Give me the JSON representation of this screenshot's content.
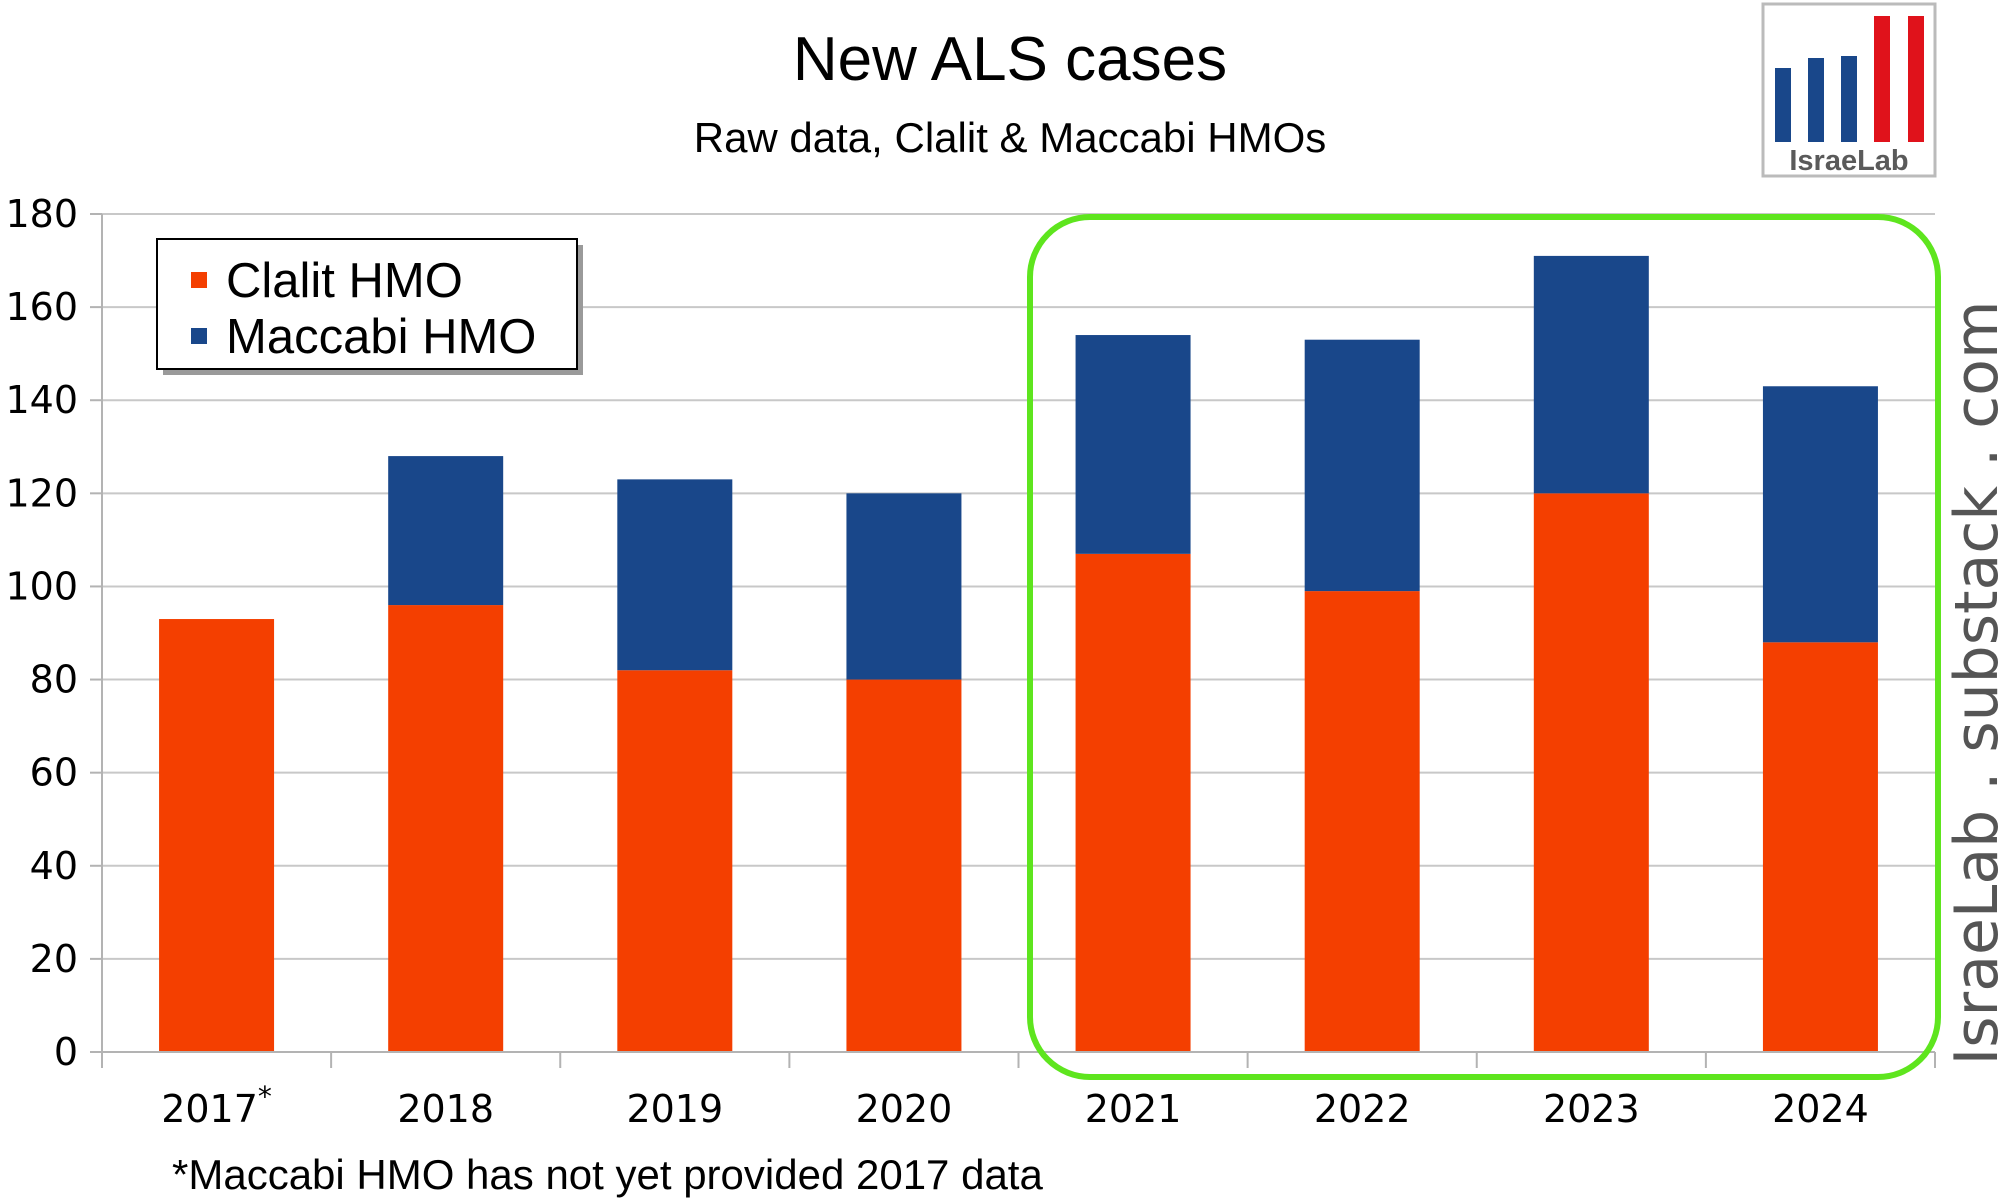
{
  "chart_data": {
    "type": "bar",
    "stacked": true,
    "title": "New ALS cases",
    "subtitle": "Raw data, Clalit & Maccabi HMOs",
    "xlabel": "",
    "ylabel": "",
    "categories": [
      "2017*",
      "2018",
      "2019",
      "2020",
      "2021",
      "2022",
      "2023",
      "2024"
    ],
    "series": [
      {
        "name": "Clalit HMO",
        "color": "#f43f00",
        "values": [
          93,
          96,
          82,
          80,
          107,
          99,
          120,
          88
        ]
      },
      {
        "name": "Maccabi HMO",
        "color": "#19478a",
        "values": [
          0,
          32,
          41,
          40,
          47,
          54,
          51,
          55
        ]
      }
    ],
    "ylim": [
      0,
      180
    ],
    "yticks": [
      0,
      20,
      40,
      60,
      80,
      100,
      120,
      140,
      160,
      180
    ],
    "grid": true,
    "legend_position": "top-left",
    "highlight": {
      "color": "#5ee51e",
      "categories": [
        "2021",
        "2022",
        "2023",
        "2024"
      ]
    },
    "footnote": "*Maccabi HMO has not yet provided 2017 data"
  },
  "logo": {
    "text": "IsraeLab",
    "bar_colors": [
      "#19478a",
      "#19478a",
      "#19478a",
      "#e0121b",
      "#e0121b"
    ]
  },
  "watermark": "IsraeLab . substack . com"
}
